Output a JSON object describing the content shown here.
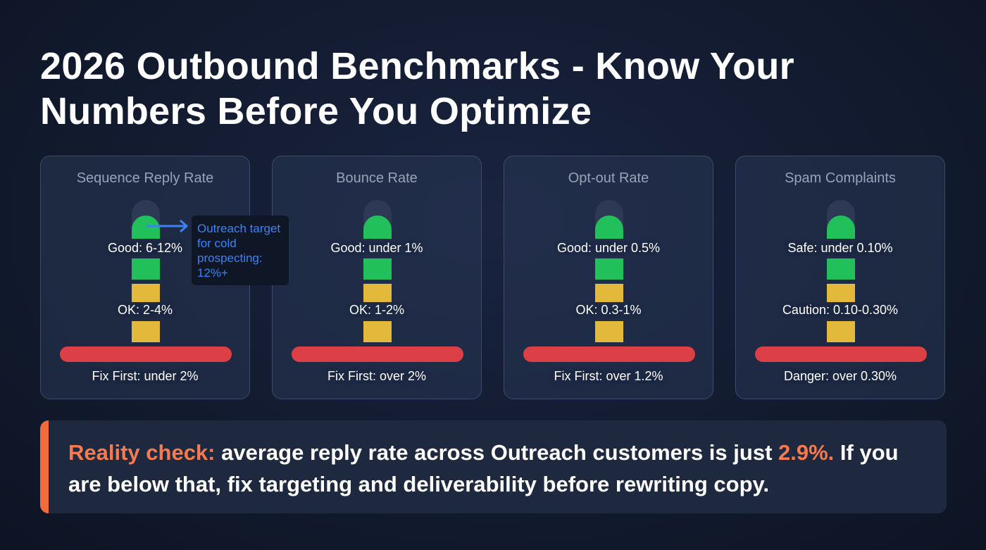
{
  "header": {
    "title": "2026 Outbound Benchmarks - Know Your Numbers Before You Optimize"
  },
  "cards": [
    {
      "title": "Sequence Reply Rate",
      "good": "Good: 6-12%",
      "ok": "OK: 2-4%",
      "fix": "Fix First: under 2%"
    },
    {
      "title": "Bounce Rate",
      "good": "Good: under 1%",
      "ok": "OK: 1-2%",
      "fix": "Fix First: over 2%"
    },
    {
      "title": "Opt-out Rate",
      "good": "Good: under 0.5%",
      "ok": "OK: 0.3-1%",
      "fix": "Fix First: over 1.2%"
    },
    {
      "title": "Spam Complaints",
      "good": "Safe: under 0.10%",
      "ok": "Caution: 0.10-0.30%",
      "fix": "Danger: over 0.30%"
    }
  ],
  "callout": {
    "text": "Outreach target for cold prospecting: 12%+"
  },
  "footer": {
    "lead": "Reality check:",
    "text1": "average reply rate across Outreach customers is just",
    "highlight": "2.9%.",
    "text2": "If you are below that, fix targeting and deliverability before rewriting copy."
  }
}
